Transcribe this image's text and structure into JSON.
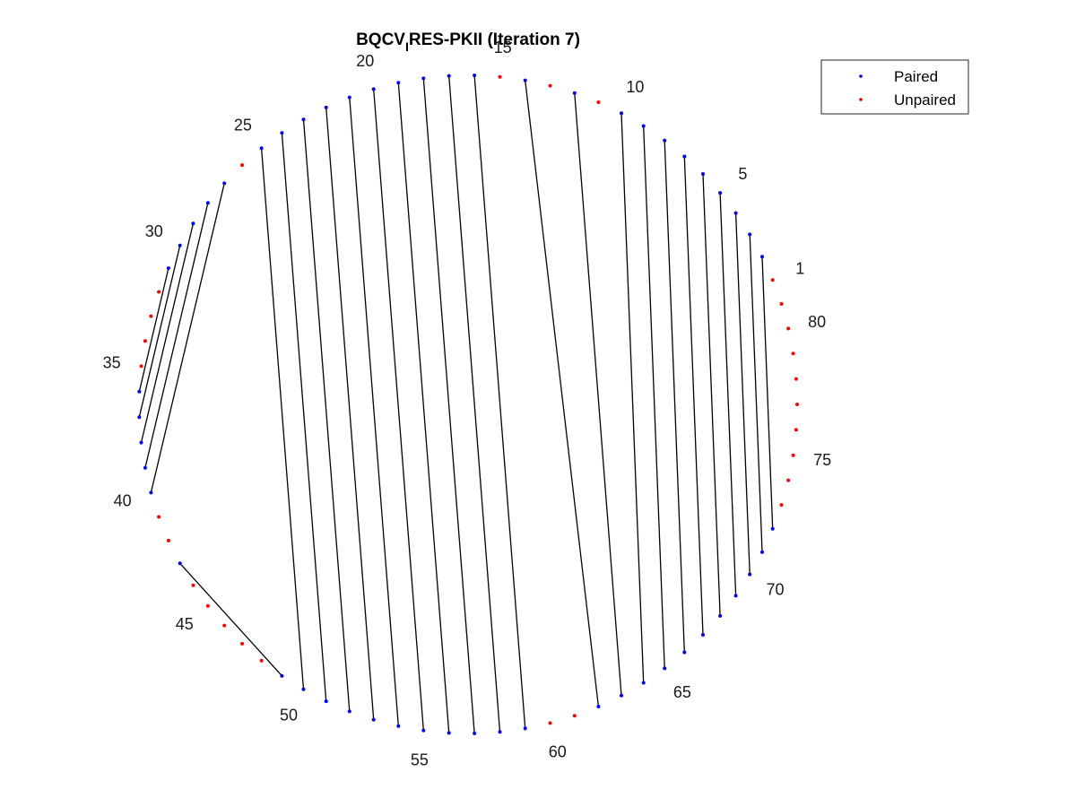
{
  "title": {
    "prefix": "BQCV",
    "subscript": "I",
    "suffix": "RES-PKII (Iteration 7)"
  },
  "legend": {
    "placement": "top-right",
    "items": [
      {
        "label": "Paired",
        "color": "#0000ff"
      },
      {
        "label": "Unpaired",
        "color": "#ff0000"
      }
    ]
  },
  "chart_data": {
    "type": "arc-diagram-circular",
    "sequence_length": 81,
    "index_labels": [
      1,
      5,
      10,
      15,
      20,
      25,
      30,
      35,
      40,
      45,
      50,
      55,
      60,
      65,
      70,
      75,
      80
    ],
    "colors": {
      "paired": "#0000ff",
      "unpaired": "#ff0000",
      "pair_line": "#000000"
    },
    "pairs": [
      [
        2,
        72
      ],
      [
        3,
        71
      ],
      [
        4,
        70
      ],
      [
        5,
        69
      ],
      [
        6,
        68
      ],
      [
        7,
        67
      ],
      [
        8,
        66
      ],
      [
        9,
        65
      ],
      [
        10,
        64
      ],
      [
        12,
        63
      ],
      [
        14,
        62
      ],
      [
        16,
        59
      ],
      [
        17,
        58
      ],
      [
        18,
        57
      ],
      [
        19,
        56
      ],
      [
        20,
        55
      ],
      [
        21,
        54
      ],
      [
        22,
        53
      ],
      [
        23,
        52
      ],
      [
        24,
        51
      ],
      [
        25,
        50
      ],
      [
        27,
        40
      ],
      [
        28,
        39
      ],
      [
        29,
        38
      ],
      [
        30,
        37
      ],
      [
        31,
        36
      ],
      [
        43,
        49
      ]
    ]
  }
}
